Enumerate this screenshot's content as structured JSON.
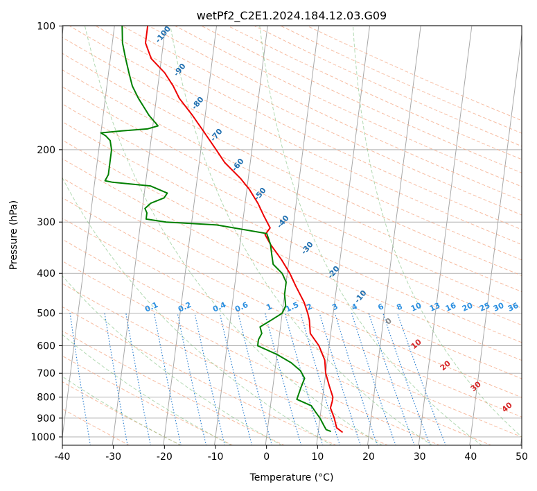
{
  "chart_data": {
    "type": "line",
    "subtype": "skew-t log-p sounding",
    "title": "wetPf2_C2E1.2024.184.12.03.G09",
    "xlabel": "Temperature (°C)",
    "ylabel": "Pressure (hPa)",
    "xlim": [
      -40,
      50
    ],
    "ylim": [
      1050,
      100
    ],
    "y_scale": "log",
    "grid": true,
    "x_ticks": [
      "-40",
      "-30",
      "-20",
      "-10",
      "0",
      "10",
      "20",
      "30",
      "40",
      "50"
    ],
    "y_ticks": [
      "100",
      "200",
      "300",
      "400",
      "500",
      "600",
      "700",
      "800",
      "900",
      "1000"
    ],
    "series": [
      {
        "color": "#ee0000",
        "points": [
          [
            14.8,
            975
          ],
          [
            13.5,
            950
          ],
          [
            12.8,
            900
          ],
          [
            11.8,
            850
          ],
          [
            12.0,
            820
          ],
          [
            12.0,
            800
          ],
          [
            11.0,
            750
          ],
          [
            10.0,
            700
          ],
          [
            9.5,
            650
          ],
          [
            8.0,
            600
          ],
          [
            6.0,
            560
          ],
          [
            5.5,
            520
          ],
          [
            5.0,
            500
          ],
          [
            4.0,
            470
          ],
          [
            2.0,
            430
          ],
          [
            0.5,
            400
          ],
          [
            -1.5,
            370
          ],
          [
            -4.0,
            340
          ],
          [
            -5.3,
            322
          ],
          [
            -4.5,
            310
          ],
          [
            -6.0,
            290
          ],
          [
            -7.5,
            270
          ],
          [
            -9.5,
            250
          ],
          [
            -11.5,
            235
          ],
          [
            -15.0,
            215
          ],
          [
            -17.0,
            200
          ],
          [
            -20.0,
            180
          ],
          [
            -22.5,
            165
          ],
          [
            -25.5,
            150
          ],
          [
            -27.0,
            140
          ],
          [
            -29.0,
            130
          ],
          [
            -32.0,
            120
          ],
          [
            -33.5,
            110
          ],
          [
            -33.5,
            100
          ]
        ]
      },
      {
        "color": "#008000",
        "points": [
          [
            12.5,
            970
          ],
          [
            11.5,
            960
          ],
          [
            11.0,
            940
          ],
          [
            10.0,
            900
          ],
          [
            9.0,
            870
          ],
          [
            8.0,
            840
          ],
          [
            5.0,
            810
          ],
          [
            5.5,
            760
          ],
          [
            6.0,
            720
          ],
          [
            5.0,
            690
          ],
          [
            3.0,
            660
          ],
          [
            0.0,
            630
          ],
          [
            -4.0,
            600
          ],
          [
            -4.0,
            580
          ],
          [
            -3.5,
            560
          ],
          [
            -4.0,
            540
          ],
          [
            -2.0,
            520
          ],
          [
            0.0,
            500
          ],
          [
            0.5,
            480
          ],
          [
            0.0,
            450
          ],
          [
            0.0,
            420
          ],
          [
            -1.0,
            400
          ],
          [
            -3.0,
            380
          ],
          [
            -3.5,
            360
          ],
          [
            -4.0,
            340
          ],
          [
            -5.0,
            320
          ],
          [
            -15.0,
            305
          ],
          [
            -25.0,
            300
          ],
          [
            -29.0,
            295
          ],
          [
            -29.0,
            285
          ],
          [
            -29.5,
            278
          ],
          [
            -28.5,
            270
          ],
          [
            -26.0,
            262
          ],
          [
            -25.5,
            255
          ],
          [
            -29.0,
            245
          ],
          [
            -36.5,
            240
          ],
          [
            -38.0,
            238
          ],
          [
            -37.5,
            230
          ],
          [
            -37.5,
            215
          ],
          [
            -37.5,
            200
          ],
          [
            -38.0,
            190
          ],
          [
            -39.0,
            185
          ],
          [
            -40.0,
            182
          ],
          [
            -36.0,
            180
          ],
          [
            -31.0,
            178
          ],
          [
            -29.0,
            175
          ],
          [
            -31.0,
            165
          ],
          [
            -33.5,
            150
          ],
          [
            -35.0,
            140
          ],
          [
            -36.0,
            130
          ],
          [
            -37.0,
            120
          ],
          [
            -38.0,
            110
          ],
          [
            -38.5,
            100
          ]
        ]
      }
    ],
    "dry_adiabat_labels": [
      "-100",
      "-90",
      "-80",
      "-70",
      "-60",
      "-50",
      "-40",
      "-30",
      "-20",
      "-10"
    ],
    "moist_adiabat_labels": [
      "0",
      "10",
      "20",
      "30",
      "40"
    ],
    "mixing_ratio_labels": [
      "0.1",
      "0.2",
      "0.4",
      "0.6",
      "1",
      "1.5",
      "2",
      "3",
      "4",
      "6",
      "8",
      "10",
      "13",
      "16",
      "20",
      "25",
      "30",
      "36"
    ]
  }
}
